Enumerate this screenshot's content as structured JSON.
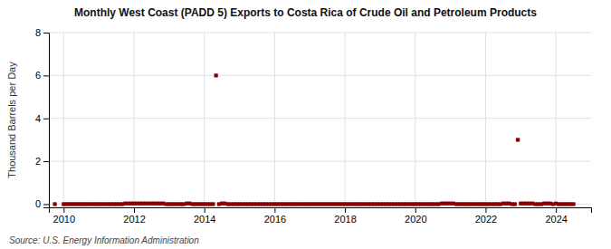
{
  "chart_data": {
    "type": "scatter",
    "title": "Monthly West Coast (PADD 5) Exports to Costa Rica of Crude Oil and Petroleum Products",
    "ylabel": "Thousand Barrels per Day",
    "source": "Source: U.S. Energy Information Administration",
    "color": "#8b0000",
    "marker": "square",
    "grid": true,
    "xlim": [
      2009.58,
      2025.0
    ],
    "ylim": [
      -0.15,
      8.0
    ],
    "xticks": [
      2010,
      2012,
      2014,
      2016,
      2018,
      2020,
      2022,
      2024
    ],
    "yticks": [
      0,
      2,
      4,
      6,
      8
    ],
    "x": [
      2009.75,
      2010.0,
      2010.083,
      2010.167,
      2010.25,
      2010.333,
      2010.417,
      2010.5,
      2010.583,
      2010.667,
      2010.75,
      2010.833,
      2010.917,
      2011.0,
      2011.083,
      2011.167,
      2011.25,
      2011.333,
      2011.417,
      2011.5,
      2011.583,
      2011.667,
      2011.75,
      2011.833,
      2011.917,
      2012.0,
      2012.083,
      2012.167,
      2012.25,
      2012.333,
      2012.417,
      2012.5,
      2012.583,
      2012.667,
      2012.75,
      2012.833,
      2012.917,
      2013.0,
      2013.083,
      2013.167,
      2013.25,
      2013.333,
      2013.417,
      2013.5,
      2013.583,
      2013.667,
      2013.75,
      2013.833,
      2013.917,
      2014.0,
      2014.083,
      2014.167,
      2014.25,
      2014.333,
      2014.417,
      2014.5,
      2014.583,
      2014.667,
      2014.75,
      2014.833,
      2014.917,
      2015.0,
      2015.083,
      2015.167,
      2015.25,
      2015.333,
      2015.417,
      2015.5,
      2015.583,
      2015.667,
      2015.75,
      2015.833,
      2015.917,
      2016.0,
      2016.083,
      2016.167,
      2016.25,
      2016.333,
      2016.417,
      2016.5,
      2016.583,
      2016.667,
      2016.75,
      2016.833,
      2016.917,
      2017.0,
      2017.083,
      2017.167,
      2017.25,
      2017.333,
      2017.417,
      2017.5,
      2017.583,
      2017.667,
      2017.75,
      2017.833,
      2017.917,
      2018.0,
      2018.083,
      2018.167,
      2018.25,
      2018.333,
      2018.417,
      2018.5,
      2018.583,
      2018.667,
      2018.75,
      2018.833,
      2018.917,
      2019.0,
      2019.083,
      2019.167,
      2019.25,
      2019.333,
      2019.417,
      2019.5,
      2019.583,
      2019.667,
      2019.75,
      2019.833,
      2019.917,
      2020.0,
      2020.083,
      2020.167,
      2020.25,
      2020.333,
      2020.417,
      2020.5,
      2020.583,
      2020.667,
      2020.75,
      2020.833,
      2020.917,
      2021.0,
      2021.083,
      2021.167,
      2021.25,
      2021.333,
      2021.417,
      2021.5,
      2021.583,
      2021.667,
      2021.75,
      2021.833,
      2021.917,
      2022.0,
      2022.083,
      2022.167,
      2022.25,
      2022.333,
      2022.417,
      2022.5,
      2022.583,
      2022.667,
      2022.75,
      2022.833,
      2022.917,
      2023.0,
      2023.083,
      2023.167,
      2023.25,
      2023.333,
      2023.417,
      2023.5,
      2023.583,
      2023.667,
      2023.75,
      2023.833,
      2023.917,
      2024.0,
      2024.083,
      2024.167,
      2024.25,
      2024.333,
      2024.417,
      2024.5
    ],
    "values": [
      0.0,
      0.0,
      0.0,
      0.0,
      0.0,
      0.0,
      0.0,
      0.0,
      0.0,
      0.0,
      0.0,
      0.0,
      0.0,
      0.0,
      0.0,
      0.0,
      0.0,
      0.0,
      0.0,
      0.0,
      0.0,
      0.0,
      0.03,
      0.03,
      0.03,
      0.03,
      0.03,
      0.03,
      0.03,
      0.03,
      0.03,
      0.03,
      0.03,
      0.03,
      0.03,
      0.03,
      0.0,
      0.0,
      0.0,
      0.0,
      0.0,
      0.0,
      0.0,
      0.03,
      0.03,
      0.0,
      0.0,
      0.0,
      0.0,
      0.0,
      0.0,
      0.0,
      0.0,
      6.0,
      0.0,
      0.03,
      0.03,
      0.0,
      0.0,
      0.0,
      0.0,
      0.0,
      0.0,
      0.0,
      0.0,
      0.0,
      0.0,
      0.0,
      0.0,
      0.0,
      0.0,
      0.0,
      0.0,
      0.0,
      0.0,
      0.0,
      0.0,
      0.0,
      0.0,
      0.0,
      0.0,
      0.0,
      0.0,
      0.0,
      0.0,
      0.0,
      0.0,
      0.0,
      0.0,
      0.0,
      0.0,
      0.0,
      0.0,
      0.0,
      0.0,
      0.0,
      0.0,
      0.0,
      0.0,
      0.0,
      0.0,
      0.0,
      0.0,
      0.0,
      0.0,
      0.0,
      0.0,
      0.0,
      0.0,
      0.0,
      0.0,
      0.0,
      0.0,
      0.0,
      0.0,
      0.0,
      0.0,
      0.0,
      0.0,
      0.0,
      0.0,
      0.0,
      0.0,
      0.0,
      0.0,
      0.0,
      0.0,
      0.0,
      0.0,
      0.0,
      0.03,
      0.03,
      0.03,
      0.03,
      0.03,
      0.0,
      0.0,
      0.0,
      0.0,
      0.0,
      0.0,
      0.0,
      0.0,
      0.0,
      0.0,
      0.0,
      0.0,
      0.0,
      0.0,
      0.0,
      0.0,
      0.03,
      0.03,
      0.03,
      0.0,
      0.0,
      3.0,
      0.03,
      0.03,
      0.03,
      0.03,
      0.03,
      0.0,
      0.0,
      0.0,
      0.03,
      0.03,
      0.03,
      0.0,
      0.03,
      0.0,
      0.0,
      0.0,
      0.0,
      0.0,
      0.0
    ]
  }
}
